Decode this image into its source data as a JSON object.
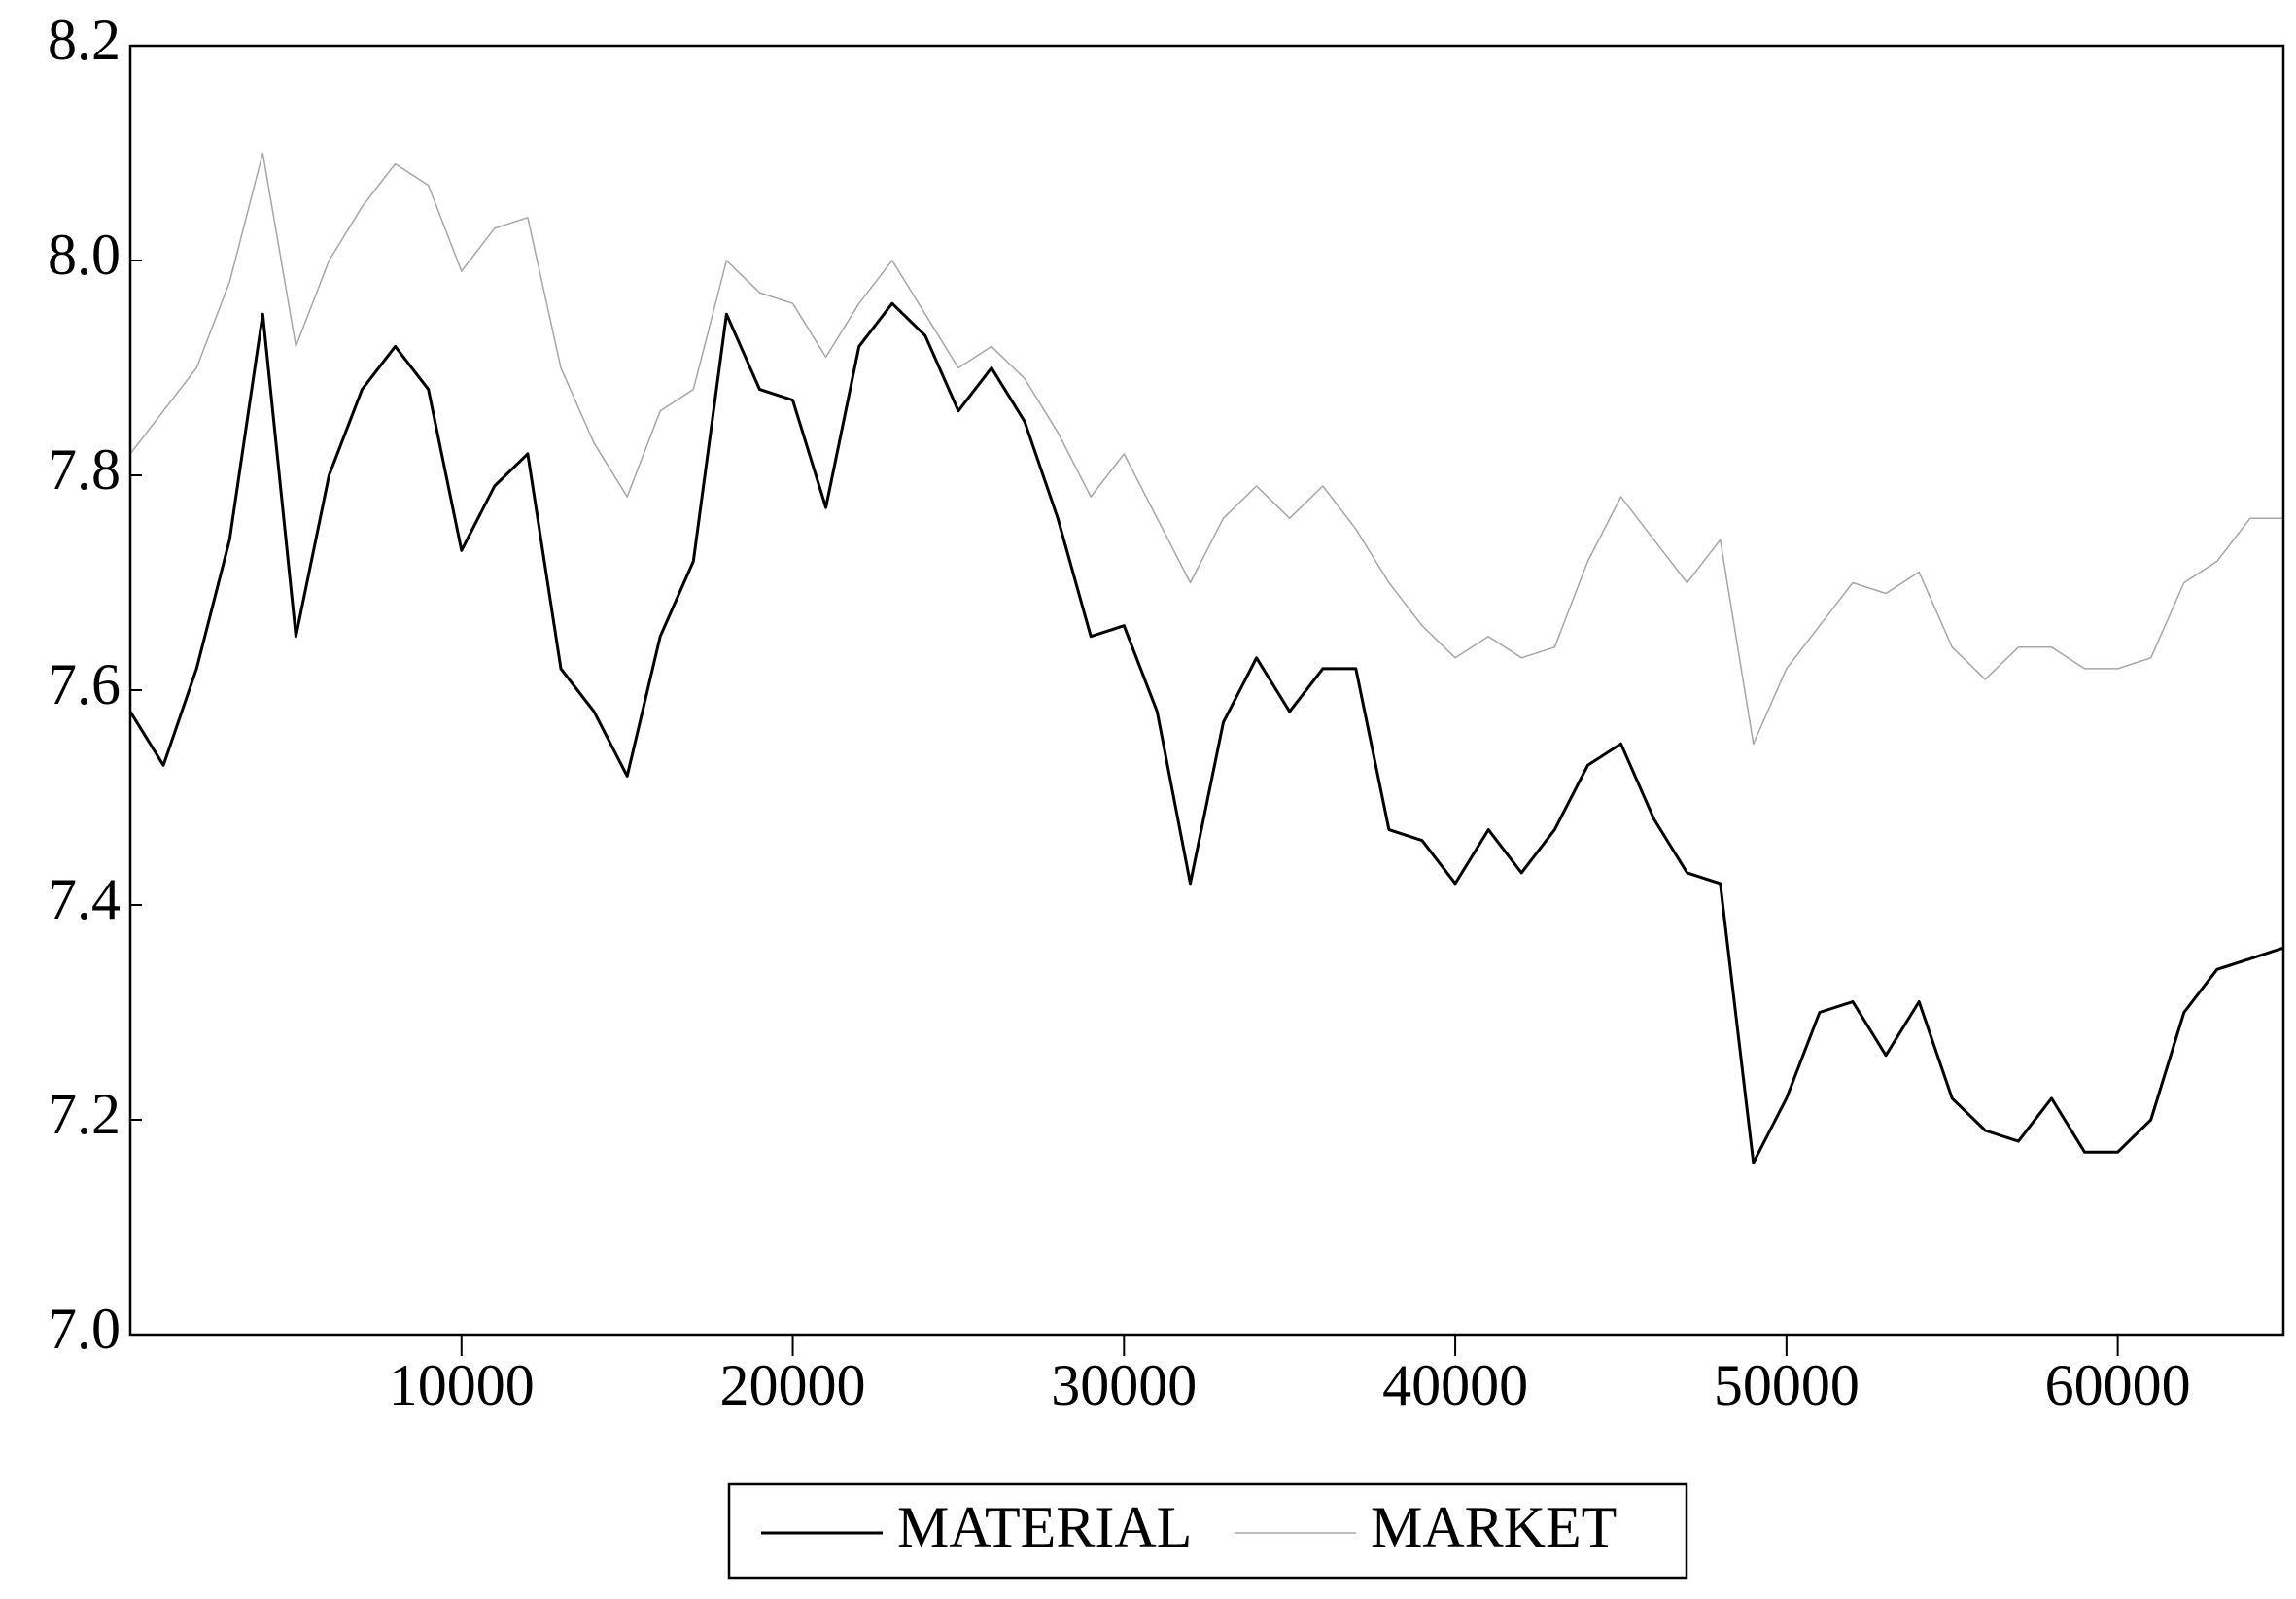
{
  "chart_data": {
    "type": "line",
    "x": [
      0,
      1000,
      2000,
      3000,
      4000,
      5000,
      6000,
      7000,
      8000,
      9000,
      10000,
      11000,
      12000,
      13000,
      14000,
      15000,
      16000,
      17000,
      18000,
      19000,
      20000,
      21000,
      22000,
      23000,
      24000,
      25000,
      26000,
      27000,
      28000,
      29000,
      30000,
      31000,
      32000,
      33000,
      34000,
      35000,
      36000,
      37000,
      38000,
      39000,
      40000,
      41000,
      42000,
      43000,
      44000,
      45000,
      46000,
      47000,
      48000,
      49000,
      50000,
      51000,
      52000,
      53000,
      54000,
      55000,
      56000,
      57000,
      58000,
      59000,
      60000,
      61000,
      62000,
      63000,
      64000,
      65000
    ],
    "series": [
      {
        "name": "MATERIAL",
        "color": "#000000",
        "width": 3,
        "values": [
          7.58,
          7.53,
          7.62,
          7.74,
          7.95,
          7.65,
          7.8,
          7.88,
          7.92,
          7.88,
          7.73,
          7.79,
          7.82,
          7.62,
          7.58,
          7.52,
          7.65,
          7.72,
          7.95,
          7.88,
          7.87,
          7.77,
          7.92,
          7.96,
          7.93,
          7.86,
          7.9,
          7.85,
          7.76,
          7.65,
          7.66,
          7.58,
          7.42,
          7.57,
          7.63,
          7.58,
          7.62,
          7.62,
          7.47,
          7.46,
          7.42,
          7.47,
          7.43,
          7.47,
          7.53,
          7.55,
          7.48,
          7.43,
          7.42,
          7.16,
          7.22,
          7.3,
          7.31,
          7.26,
          7.31,
          7.22,
          7.19,
          7.18,
          7.22,
          7.17,
          7.17,
          7.2,
          7.3,
          7.34,
          7.35,
          7.36
        ]
      },
      {
        "name": "MARKET",
        "color": "#a6a6a6",
        "width": 1.5,
        "values": [
          7.82,
          7.86,
          7.9,
          7.98,
          8.1,
          7.92,
          8.0,
          8.05,
          8.09,
          8.07,
          7.99,
          8.03,
          8.04,
          7.9,
          7.83,
          7.78,
          7.86,
          7.88,
          8.0,
          7.97,
          7.96,
          7.91,
          7.96,
          8.0,
          7.95,
          7.9,
          7.92,
          7.89,
          7.84,
          7.78,
          7.82,
          7.76,
          7.7,
          7.76,
          7.79,
          7.76,
          7.79,
          7.75,
          7.7,
          7.66,
          7.63,
          7.65,
          7.63,
          7.64,
          7.72,
          7.78,
          7.74,
          7.7,
          7.74,
          7.55,
          7.62,
          7.66,
          7.7,
          7.69,
          7.71,
          7.64,
          7.61,
          7.64,
          7.64,
          7.62,
          7.62,
          7.63,
          7.7,
          7.72,
          7.76,
          7.76
        ]
      }
    ],
    "xlim": [
      0,
      65000
    ],
    "xticks": [
      10000,
      20000,
      30000,
      40000,
      50000,
      60000
    ],
    "ylim": [
      7.0,
      8.2
    ],
    "yticks": [
      {
        "value": 7,
        "label": "7.0"
      },
      7.2,
      7.4,
      7.6,
      7.8,
      {
        "value": 8,
        "label": "8.0"
      },
      8.2
    ],
    "legend": "bottom"
  }
}
